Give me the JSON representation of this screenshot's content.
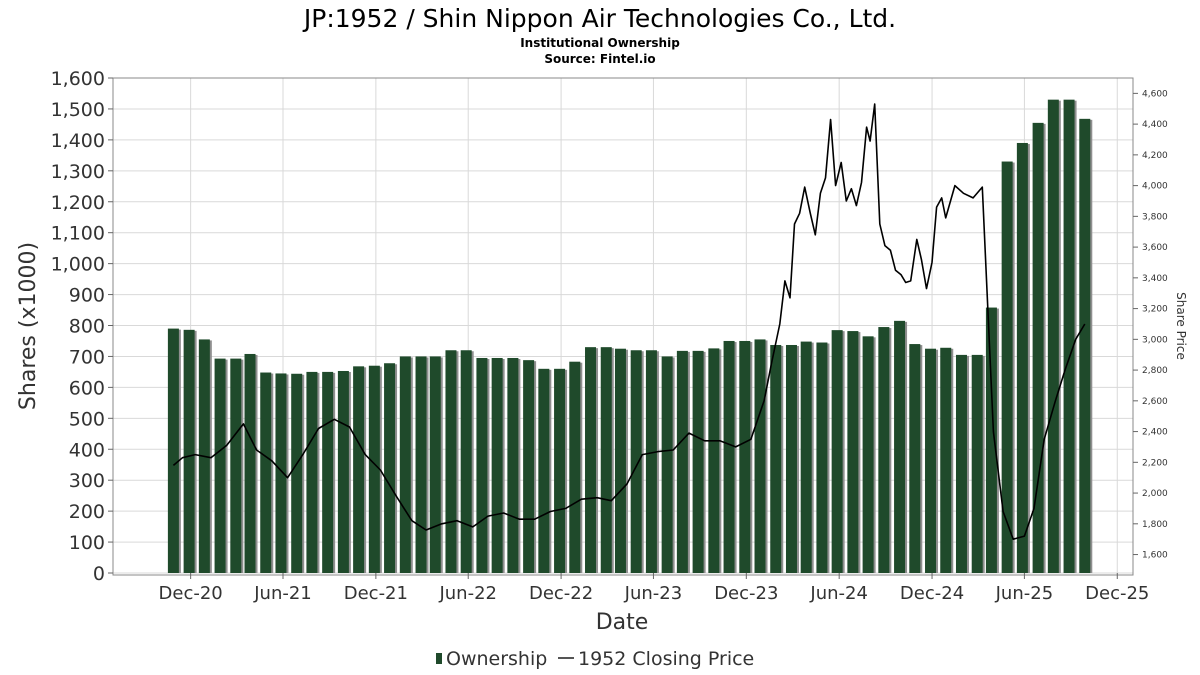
{
  "chart_data": {
    "type": "bar+line",
    "title": "JP:1952 / Shin Nippon Air Technologies Co., Ltd.",
    "subtitle": "Institutional Ownership",
    "source": "Source: Fintel.io",
    "xlabel": "Date",
    "ylabel": "Shares (x1000)",
    "y2label": "Share Price",
    "x_tick_labels": [
      "Dec-20",
      "Jun-21",
      "Dec-21",
      "Jun-22",
      "Dec-22",
      "Jun-23",
      "Dec-23",
      "Jun-24",
      "Dec-24",
      "Jun-25",
      "Dec-25"
    ],
    "x_ticks": [
      "2020-12-01",
      "2021-06-01",
      "2021-12-01",
      "2022-06-01",
      "2022-12-01",
      "2023-06-01",
      "2023-12-01",
      "2024-06-01",
      "2024-12-01",
      "2025-06-01",
      "2025-12-01"
    ],
    "xlim": [
      "2020-07-01",
      "2026-01-01"
    ],
    "ylim": [
      0,
      1600
    ],
    "y_ticks": [
      0,
      100,
      200,
      300,
      400,
      500,
      600,
      700,
      800,
      900,
      1000,
      1100,
      1200,
      1300,
      1400,
      1500,
      1600
    ],
    "y_tick_labels": [
      "0",
      "100",
      "200",
      "300",
      "400",
      "500",
      "600",
      "700",
      "800",
      "900",
      "1,000",
      "1,100",
      "1,200",
      "1,300",
      "1,400",
      "1,500",
      "1,600"
    ],
    "y2lim": [
      1480,
      4700
    ],
    "y2_ticks": [
      1600,
      1800,
      2000,
      2200,
      2400,
      2600,
      2800,
      3000,
      3200,
      3400,
      3600,
      3800,
      4000,
      4200,
      4400,
      4600
    ],
    "y2_tick_labels": [
      "1,600",
      "1,800",
      "2,000",
      "2,200",
      "2,400",
      "2,600",
      "2,800",
      "3,000",
      "3,200",
      "3,400",
      "3,600",
      "3,800",
      "4,000",
      "4,200",
      "4,400",
      "4,600"
    ],
    "grid": true,
    "legend": {
      "position": "bottom",
      "items": [
        {
          "label": "Ownership",
          "symbol": "bar"
        },
        {
          "label": "1952 Closing Price",
          "symbol": "line"
        }
      ]
    },
    "colors": {
      "bar": "#1f4a2b",
      "bar_shadow": "#8f8f8f",
      "price_line": "#000000",
      "grid": "#d9d9d9"
    },
    "series": [
      {
        "name": "Ownership",
        "kind": "bar",
        "x": [
          "2020-10-28",
          "2020-11-28",
          "2020-12-28",
          "2021-01-28",
          "2021-02-28",
          "2021-03-28",
          "2021-04-28",
          "2021-05-28",
          "2021-06-28",
          "2021-07-28",
          "2021-08-28",
          "2021-09-28",
          "2021-10-28",
          "2021-11-28",
          "2021-12-28",
          "2022-01-28",
          "2022-02-28",
          "2022-03-28",
          "2022-04-28",
          "2022-05-28",
          "2022-06-28",
          "2022-07-28",
          "2022-08-28",
          "2022-09-28",
          "2022-10-28",
          "2022-11-28",
          "2022-12-28",
          "2023-01-28",
          "2023-02-28",
          "2023-03-28",
          "2023-04-28",
          "2023-05-28",
          "2023-06-28",
          "2023-07-28",
          "2023-08-28",
          "2023-09-28",
          "2023-10-28",
          "2023-11-28",
          "2023-12-28",
          "2024-01-28",
          "2024-02-28",
          "2024-03-28",
          "2024-04-28",
          "2024-05-28",
          "2024-06-28",
          "2024-07-28",
          "2024-08-28",
          "2024-09-28",
          "2024-10-28",
          "2024-11-28",
          "2024-12-28",
          "2025-01-28",
          "2025-02-28",
          "2025-03-28",
          "2025-04-28",
          "2025-05-28",
          "2025-06-28",
          "2025-07-28",
          "2025-08-28",
          "2025-09-28"
        ],
        "values": [
          790,
          786,
          755,
          693,
          693,
          708,
          648,
          645,
          644,
          650,
          650,
          653,
          668,
          670,
          678,
          700,
          700,
          700,
          720,
          720,
          695,
          695,
          695,
          688,
          660,
          660,
          683,
          730,
          730,
          725,
          720,
          720,
          700,
          718,
          718,
          726,
          750,
          750,
          755,
          737,
          737,
          748,
          745,
          785,
          782,
          765,
          795,
          815,
          740,
          725,
          728,
          705,
          705,
          858,
          1330,
          1390,
          1455,
          1530,
          1530,
          1468
        ]
      },
      {
        "name": "1952 Closing Price",
        "kind": "line",
        "axis": "right",
        "x": [
          "2020-10-28",
          "2020-11-15",
          "2020-12-10",
          "2021-01-10",
          "2021-02-10",
          "2021-03-15",
          "2021-04-10",
          "2021-05-10",
          "2021-06-10",
          "2021-07-10",
          "2021-08-10",
          "2021-09-10",
          "2021-10-10",
          "2021-11-10",
          "2021-12-10",
          "2022-01-10",
          "2022-02-10",
          "2022-03-10",
          "2022-04-10",
          "2022-05-10",
          "2022-06-10",
          "2022-07-10",
          "2022-08-10",
          "2022-09-10",
          "2022-10-10",
          "2022-11-10",
          "2022-12-10",
          "2023-01-10",
          "2023-02-10",
          "2023-03-10",
          "2023-04-10",
          "2023-05-10",
          "2023-06-10",
          "2023-07-10",
          "2023-08-10",
          "2023-09-10",
          "2023-10-10",
          "2023-11-10",
          "2023-12-10",
          "2024-01-05",
          "2024-01-20",
          "2024-02-05",
          "2024-02-15",
          "2024-02-25",
          "2024-03-05",
          "2024-03-15",
          "2024-03-25",
          "2024-04-05",
          "2024-04-15",
          "2024-04-25",
          "2024-05-05",
          "2024-05-15",
          "2024-05-25",
          "2024-06-05",
          "2024-06-15",
          "2024-06-25",
          "2024-07-05",
          "2024-07-15",
          "2024-07-25",
          "2024-08-01",
          "2024-08-10",
          "2024-08-20",
          "2024-08-30",
          "2024-09-10",
          "2024-09-20",
          "2024-10-01",
          "2024-10-10",
          "2024-10-20",
          "2024-11-01",
          "2024-11-10",
          "2024-11-20",
          "2024-12-01",
          "2024-12-10",
          "2024-12-20",
          "2024-12-28",
          "2025-01-15",
          "2025-02-01",
          "2025-02-20",
          "2025-03-10",
          "2025-04-01",
          "2025-04-20",
          "2025-05-10",
          "2025-06-01",
          "2025-06-20",
          "2025-07-10",
          "2025-08-01",
          "2025-08-20",
          "2025-09-10",
          "2025-09-28"
        ],
        "values": [
          2180,
          2230,
          2250,
          2230,
          2310,
          2450,
          2280,
          2210,
          2100,
          2250,
          2420,
          2480,
          2430,
          2250,
          2150,
          1980,
          1820,
          1760,
          1800,
          1820,
          1780,
          1850,
          1870,
          1830,
          1830,
          1880,
          1900,
          1960,
          1970,
          1950,
          2060,
          2250,
          2270,
          2280,
          2390,
          2340,
          2340,
          2300,
          2350,
          2600,
          2850,
          3100,
          3380,
          3270,
          3750,
          3820,
          3990,
          3820,
          3680,
          3950,
          4050,
          4430,
          4000,
          4150,
          3900,
          3980,
          3870,
          4020,
          4380,
          4290,
          4530,
          3750,
          3610,
          3580,
          3450,
          3420,
          3370,
          3380,
          3650,
          3520,
          3330,
          3500,
          3860,
          3920,
          3790,
          4000,
          3950,
          3920,
          3990,
          2400,
          1880,
          1700,
          1720,
          1900,
          2350,
          2600,
          2800,
          3000,
          3100
        ]
      }
    ]
  }
}
